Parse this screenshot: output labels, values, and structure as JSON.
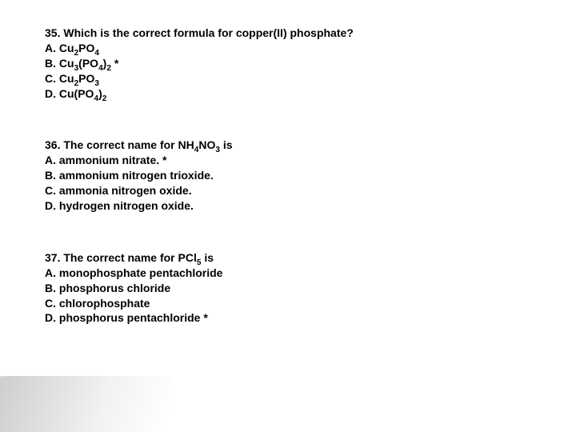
{
  "q35": {
    "prompt_pre": "35.  Which is the correct formula for copper(II) phosphate?",
    "a_pre": "A. Cu",
    "a_s1": "2",
    "a_mid": "PO",
    "a_s2": "4",
    "b_pre": "B.  Cu",
    "b_s1": "3",
    "b_mid": "(PO",
    "b_s2": "4",
    "b_mid2": ")",
    "b_s3": "2",
    "b_star": " *",
    "c_pre": "C.  Cu",
    "c_s1": "2",
    "c_mid": "PO",
    "c_s2": "3",
    "d_pre": "D. Cu(PO",
    "d_s1": "4",
    "d_mid": ")",
    "d_s2": "2"
  },
  "q36": {
    "prompt_pre": "36. The correct name for NH",
    "prompt_s1": "4",
    "prompt_mid": "NO",
    "prompt_s2": "3",
    "prompt_post": " is",
    "a": "A. ammonium nitrate. *",
    "b": "B. ammonium nitrogen trioxide.",
    "c": "C. ammonia nitrogen oxide.",
    "d": "D. hydrogen nitrogen oxide."
  },
  "q37": {
    "prompt_pre": "37. The correct name for PCl",
    "prompt_s1": "5",
    "prompt_post": " is",
    "a": "A. monophosphate pentachloride",
    "b": "B.  phosphorus chloride",
    "c": "C.  chlorophosphate",
    "d": "D.  phosphorus pentachloride *"
  }
}
